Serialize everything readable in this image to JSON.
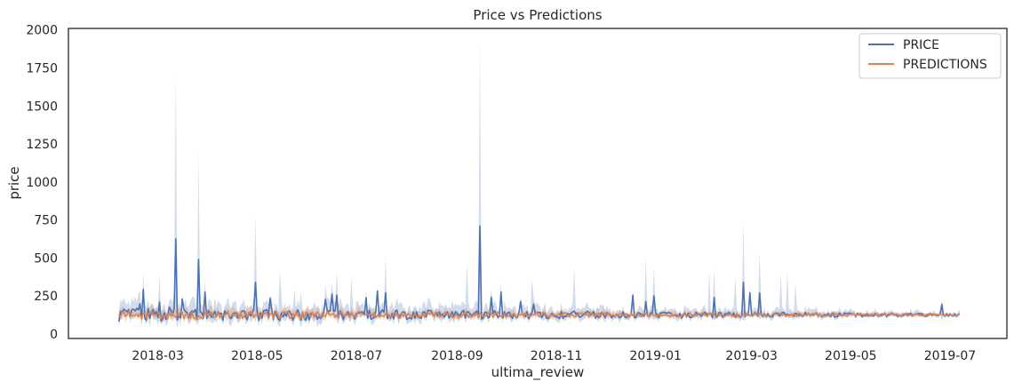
{
  "chart_data": {
    "type": "line",
    "title": "Price vs Predictions",
    "xlabel": "ultima_review",
    "ylabel": "price",
    "ylim": [
      -30,
      2010
    ],
    "yticks": [
      0,
      250,
      500,
      750,
      1000,
      1250,
      1500,
      1750,
      2000
    ],
    "ytick_labels": [
      "0",
      "250",
      "500",
      "750",
      "1000",
      "1250",
      "1500",
      "1750",
      "2000"
    ],
    "xlim": [
      "2018-01-05",
      "2019-08-05"
    ],
    "xticks": [
      "2018-03-01",
      "2018-05-01",
      "2018-07-01",
      "2018-09-01",
      "2018-11-01",
      "2019-01-01",
      "2019-03-01",
      "2019-05-01",
      "2019-07-01"
    ],
    "xtick_labels": [
      "2018-03",
      "2018-05",
      "2018-07",
      "2018-09",
      "2018-11",
      "2019-01",
      "2019-03",
      "2019-05",
      "2019-07"
    ],
    "x_range": [
      "2018-02-05",
      "2019-07-07"
    ],
    "grid": false,
    "legend_position": "top-right",
    "series": [
      {
        "name": "PRICE",
        "color": "#4c72b0",
        "base": 125,
        "spikes": [
          {
            "date": "2018-03-12",
            "value": 625,
            "upper": 1720
          },
          {
            "date": "2018-03-26",
            "value": 490,
            "upper": 1180
          },
          {
            "date": "2018-04-30",
            "value": 340,
            "upper": 775
          },
          {
            "date": "2018-09-15",
            "value": 710,
            "upper": 1915
          },
          {
            "date": "2018-12-31",
            "value": 250,
            "upper": 440
          },
          {
            "date": "2019-02-06",
            "value": 240,
            "upper": 430
          },
          {
            "date": "2019-02-24",
            "value": 340,
            "upper": 740
          },
          {
            "date": "2019-03-06",
            "value": 270,
            "upper": 545
          },
          {
            "date": "2018-06-19",
            "value": 255,
            "upper": 410
          },
          {
            "date": "2018-03-02",
            "value": 210,
            "upper": 390
          },
          {
            "date": "2019-06-26",
            "value": 195,
            "upper": 215
          }
        ]
      },
      {
        "name": "PREDICTIONS",
        "color": "#dd8452",
        "base": 125,
        "spikes": []
      }
    ]
  }
}
